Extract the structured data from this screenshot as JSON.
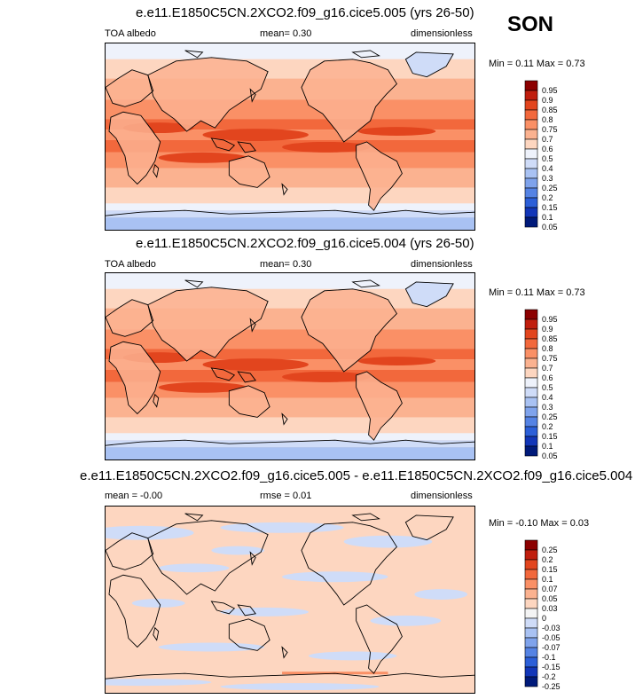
{
  "season": "SON",
  "colors": {
    "land_line": "#000000"
  },
  "panels": [
    {
      "title": "e.e11.E1850C5CN.2XCO2.f09_g16.cice5.005 (yrs 26-50)",
      "left": "TOA albedo",
      "center": "mean=  0.30",
      "right": "dimensionless",
      "minmax": "Min =  0.11 Max =  0.73",
      "levels": [
        "0.95",
        "0.9",
        "0.85",
        "0.8",
        "0.75",
        "0.7",
        "0.6",
        "0.5",
        "0.4",
        "0.3",
        "0.25",
        "0.2",
        "0.15",
        "0.1",
        "0.05"
      ],
      "colors": [
        "#8c0000",
        "#c01e0e",
        "#e2451e",
        "#f2683c",
        "#fa9066",
        "#fbb290",
        "#fdd6c0",
        "#eef2fb",
        "#cfdcf8",
        "#a9c2f3",
        "#7fa3ec",
        "#5583e4",
        "#2c5fd8",
        "#1236b8",
        "#001a7a"
      ]
    },
    {
      "title": "e.e11.E1850C5CN.2XCO2.f09_g16.cice5.004 (yrs 26-50)",
      "left": "TOA albedo",
      "center": "mean=  0.30",
      "right": "dimensionless",
      "minmax": "Min =  0.11 Max =  0.73",
      "levels": [
        "0.95",
        "0.9",
        "0.85",
        "0.8",
        "0.75",
        "0.7",
        "0.6",
        "0.5",
        "0.4",
        "0.3",
        "0.25",
        "0.2",
        "0.15",
        "0.1",
        "0.05"
      ],
      "colors": [
        "#8c0000",
        "#c01e0e",
        "#e2451e",
        "#f2683c",
        "#fa9066",
        "#fbb290",
        "#fdd6c0",
        "#eef2fb",
        "#cfdcf8",
        "#a9c2f3",
        "#7fa3ec",
        "#5583e4",
        "#2c5fd8",
        "#1236b8",
        "#001a7a"
      ]
    },
    {
      "title": "e.e11.E1850C5CN.2XCO2.f09_g16.cice5.005 - e.e11.E1850C5CN.2XCO2.f09_g16.cice5.004",
      "left": "mean = -0.00",
      "center": "rmse =  0.01",
      "right": "dimensionless",
      "minmax": "Min = -0.10 Max =  0.03",
      "levels": [
        "0.25",
        "0.2",
        "0.15",
        "0.1",
        "0.07",
        "0.05",
        "0.03",
        "0",
        "-0.03",
        "-0.05",
        "-0.07",
        "-0.1",
        "-0.15",
        "-0.2",
        "-0.25"
      ],
      "colors": [
        "#8c0000",
        "#c01e0e",
        "#e2451e",
        "#f2683c",
        "#fa9066",
        "#fbb290",
        "#fdd6c0",
        "#f4f4f4",
        "#cfdcf8",
        "#a9c2f3",
        "#7fa3ec",
        "#5583e4",
        "#2c5fd8",
        "#1236b8",
        "#001a7a"
      ]
    }
  ]
}
